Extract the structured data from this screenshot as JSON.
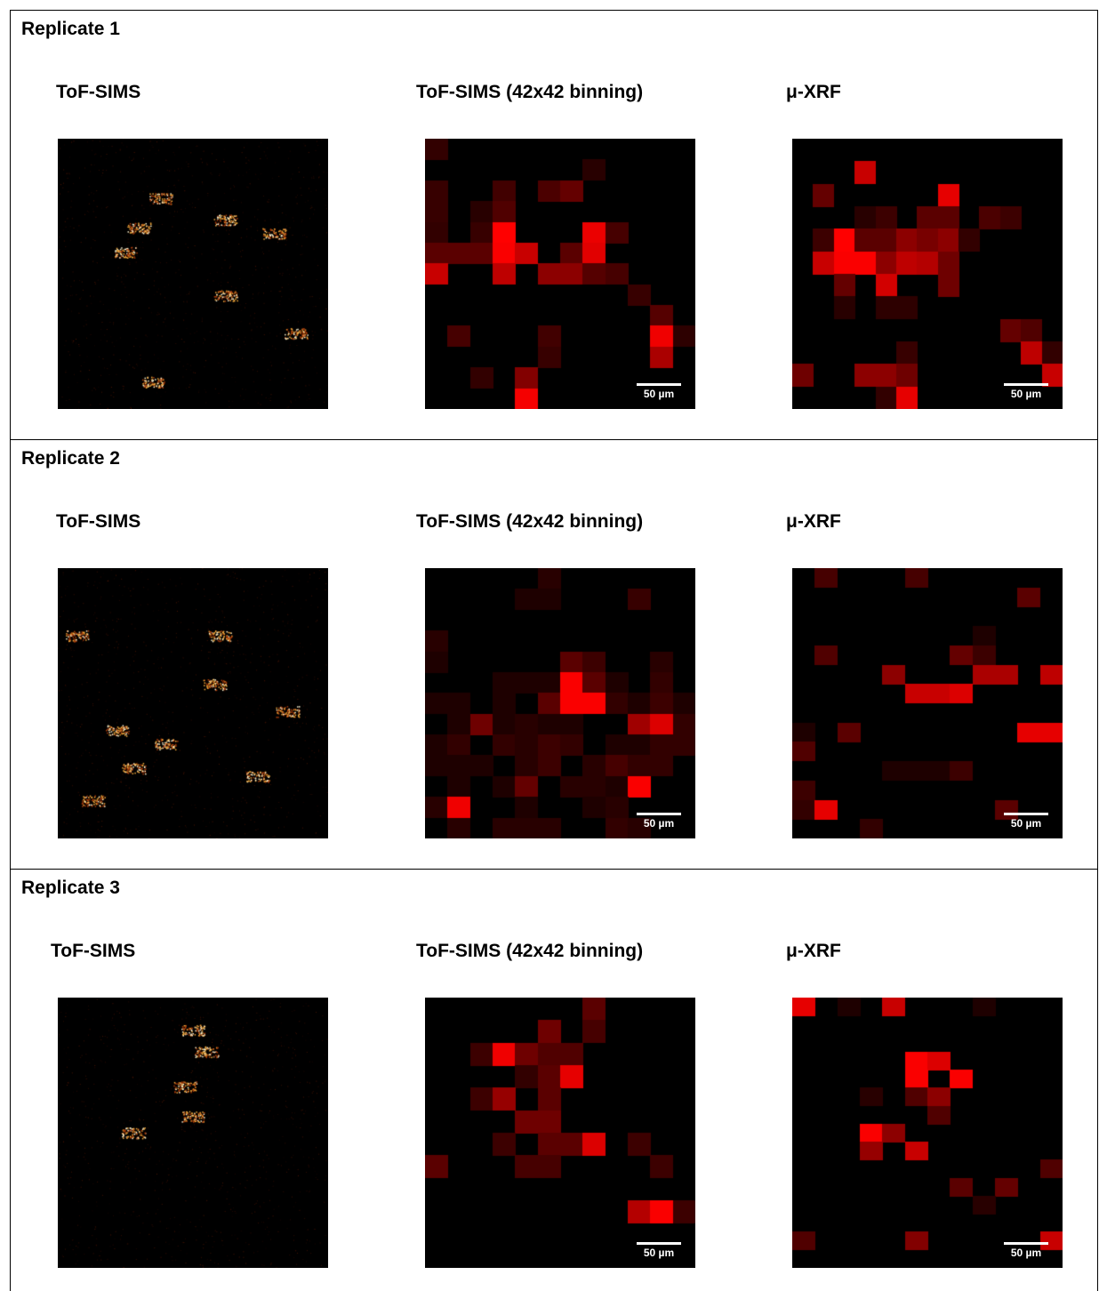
{
  "replicates": [
    {
      "title": "Replicate 1",
      "col_titles": [
        "ToF-SIMS",
        "ToF-SIMS (42x42 binning)",
        "μ-XRF"
      ],
      "scale_label": "50 µm",
      "tofsims_hotspots": [
        [
          0.3,
          0.33
        ],
        [
          0.62,
          0.3
        ],
        [
          0.25,
          0.42
        ],
        [
          0.88,
          0.72
        ],
        [
          0.38,
          0.22
        ],
        [
          0.35,
          0.9
        ],
        [
          0.62,
          0.58
        ],
        [
          0.8,
          0.35
        ]
      ],
      "binned_grid": [
        [
          50,
          0,
          0,
          0,
          0,
          0,
          0,
          0,
          0,
          0,
          0,
          0
        ],
        [
          0,
          0,
          0,
          0,
          0,
          0,
          0,
          40,
          0,
          0,
          0,
          0
        ],
        [
          55,
          0,
          0,
          65,
          0,
          75,
          100,
          0,
          0,
          0,
          0,
          0
        ],
        [
          55,
          0,
          40,
          80,
          0,
          0,
          0,
          0,
          0,
          0,
          0,
          0
        ],
        [
          50,
          0,
          55,
          255,
          0,
          0,
          0,
          235,
          70,
          0,
          0,
          0
        ],
        [
          90,
          90,
          90,
          250,
          200,
          0,
          90,
          225,
          0,
          0,
          0,
          0
        ],
        [
          200,
          0,
          0,
          190,
          0,
          140,
          140,
          85,
          70,
          0,
          0,
          0
        ],
        [
          0,
          0,
          0,
          0,
          0,
          0,
          0,
          0,
          0,
          55,
          0,
          0
        ],
        [
          0,
          0,
          0,
          0,
          0,
          0,
          0,
          0,
          0,
          0,
          85,
          0
        ],
        [
          0,
          70,
          0,
          0,
          0,
          65,
          0,
          0,
          0,
          0,
          240,
          45
        ],
        [
          0,
          0,
          0,
          0,
          0,
          55,
          0,
          0,
          0,
          0,
          170,
          0
        ],
        [
          0,
          0,
          50,
          0,
          130,
          0,
          0,
          0,
          0,
          0,
          0,
          0
        ],
        [
          0,
          0,
          0,
          0,
          245,
          0,
          0,
          0,
          0,
          0,
          0,
          0
        ]
      ],
      "xrf_grid": [
        [
          0,
          0,
          0,
          0,
          0,
          0,
          0,
          0,
          0,
          0,
          0,
          0
        ],
        [
          0,
          0,
          0,
          200,
          0,
          0,
          0,
          0,
          0,
          0,
          0,
          0
        ],
        [
          0,
          100,
          0,
          0,
          0,
          0,
          0,
          230,
          0,
          0,
          0,
          0
        ],
        [
          0,
          0,
          0,
          40,
          60,
          0,
          90,
          90,
          0,
          75,
          60,
          0
        ],
        [
          0,
          60,
          255,
          90,
          90,
          140,
          120,
          140,
          50,
          0,
          0,
          0
        ],
        [
          0,
          200,
          250,
          250,
          140,
          190,
          180,
          110,
          0,
          0,
          0,
          0
        ],
        [
          0,
          0,
          100,
          0,
          210,
          0,
          0,
          110,
          0,
          0,
          0,
          0
        ],
        [
          0,
          0,
          40,
          0,
          45,
          45,
          0,
          0,
          0,
          0,
          0,
          0
        ],
        [
          0,
          0,
          0,
          0,
          0,
          0,
          0,
          0,
          0,
          0,
          100,
          80
        ],
        [
          0,
          0,
          0,
          0,
          0,
          55,
          0,
          0,
          0,
          0,
          0,
          190,
          50
        ],
        [
          110,
          0,
          0,
          140,
          140,
          110,
          0,
          0,
          0,
          0,
          0,
          0,
          200
        ],
        [
          0,
          0,
          0,
          0,
          50,
          230,
          0,
          0,
          0,
          0,
          0,
          0
        ]
      ]
    },
    {
      "title": "Replicate 2",
      "col_titles": [
        "ToF-SIMS",
        "ToF-SIMS (42x42 binning)",
        "μ-XRF"
      ],
      "scale_label": "50 µm",
      "tofsims_hotspots": [
        [
          0.58,
          0.43
        ],
        [
          0.85,
          0.53
        ],
        [
          0.74,
          0.77
        ],
        [
          0.13,
          0.86
        ],
        [
          0.28,
          0.74
        ],
        [
          0.6,
          0.25
        ],
        [
          0.4,
          0.65
        ],
        [
          0.07,
          0.25
        ],
        [
          0.22,
          0.6
        ]
      ],
      "binned_grid": [
        [
          0,
          0,
          0,
          0,
          0,
          40,
          0,
          0,
          0,
          0,
          0,
          0
        ],
        [
          0,
          0,
          0,
          0,
          30,
          30,
          0,
          0,
          0,
          55,
          0,
          0
        ],
        [
          0,
          0,
          0,
          0,
          0,
          0,
          0,
          0,
          0,
          0,
          0,
          0
        ],
        [
          40,
          0,
          0,
          0,
          0,
          0,
          0,
          0,
          0,
          0,
          0,
          0
        ],
        [
          30,
          0,
          0,
          0,
          0,
          0,
          90,
          60,
          0,
          0,
          40,
          0
        ],
        [
          0,
          0,
          0,
          30,
          30,
          30,
          250,
          90,
          30,
          0,
          50,
          0
        ],
        [
          30,
          30,
          0,
          30,
          0,
          90,
          250,
          250,
          50,
          30,
          60,
          30
        ],
        [
          0,
          30,
          110,
          30,
          40,
          30,
          30,
          0,
          0,
          160,
          220,
          50
        ],
        [
          30,
          50,
          0,
          50,
          40,
          60,
          50,
          0,
          30,
          30,
          50,
          50
        ],
        [
          30,
          30,
          30,
          0,
          40,
          60,
          0,
          40,
          70,
          50,
          50,
          0
        ],
        [
          0,
          30,
          0,
          30,
          100,
          0,
          40,
          40,
          30,
          250,
          0,
          0
        ],
        [
          40,
          240,
          0,
          0,
          30,
          0,
          0,
          30,
          40,
          0,
          0,
          0
        ],
        [
          0,
          40,
          0,
          40,
          40,
          40,
          0,
          0,
          50,
          40,
          0,
          0
        ]
      ],
      "xrf_grid": [
        [
          0,
          70,
          0,
          0,
          0,
          70,
          0,
          0,
          0,
          0,
          0,
          0
        ],
        [
          0,
          0,
          0,
          0,
          0,
          0,
          0,
          0,
          0,
          0,
          90,
          0
        ],
        [
          0,
          0,
          0,
          0,
          0,
          0,
          0,
          0,
          0,
          0,
          0,
          0
        ],
        [
          0,
          0,
          0,
          0,
          0,
          0,
          0,
          0,
          30,
          0,
          0,
          0
        ],
        [
          0,
          80,
          0,
          0,
          0,
          0,
          0,
          100,
          60,
          0,
          0,
          0
        ],
        [
          0,
          0,
          0,
          0,
          140,
          0,
          0,
          0,
          170,
          170,
          0,
          190
        ],
        [
          0,
          0,
          0,
          0,
          0,
          200,
          200,
          220,
          0,
          0,
          0,
          0
        ],
        [
          0,
          0,
          0,
          0,
          0,
          0,
          0,
          0,
          0,
          0,
          0,
          0
        ],
        [
          30,
          0,
          90,
          0,
          0,
          0,
          0,
          0,
          0,
          0,
          230,
          230
        ],
        [
          80,
          0,
          0,
          0,
          0,
          0,
          0,
          0,
          0,
          0,
          0,
          0
        ],
        [
          0,
          0,
          0,
          0,
          30,
          30,
          30,
          60,
          0,
          0,
          0,
          0
        ],
        [
          60,
          0,
          0,
          0,
          0,
          0,
          0,
          0,
          0,
          0,
          0,
          0
        ],
        [
          50,
          230,
          0,
          0,
          0,
          0,
          0,
          0,
          0,
          90,
          0,
          0
        ],
        [
          0,
          0,
          0,
          50,
          0,
          0,
          0,
          0,
          0,
          0,
          0,
          0
        ]
      ]
    },
    {
      "title": "Replicate 3",
      "col_titles": [
        "ToF-SIMS",
        "ToF-SIMS (42x42 binning)",
        "μ-XRF"
      ],
      "scale_label": "50 µm",
      "tofsims_hotspots": [
        [
          0.47,
          0.33
        ],
        [
          0.5,
          0.44
        ],
        [
          0.55,
          0.2
        ],
        [
          0.28,
          0.5
        ],
        [
          0.5,
          0.12
        ]
      ],
      "binned_grid": [
        [
          0,
          0,
          0,
          0,
          0,
          0,
          0,
          90,
          0,
          0,
          0,
          0
        ],
        [
          0,
          0,
          0,
          0,
          0,
          110,
          0,
          70,
          0,
          0,
          0,
          0
        ],
        [
          0,
          0,
          60,
          240,
          110,
          80,
          80,
          0,
          0,
          0,
          0,
          0
        ],
        [
          0,
          0,
          0,
          0,
          50,
          90,
          230,
          0,
          0,
          0,
          0,
          0
        ],
        [
          0,
          0,
          60,
          150,
          0,
          90,
          0,
          0,
          0,
          0,
          0,
          0
        ],
        [
          0,
          0,
          0,
          0,
          110,
          110,
          0,
          0,
          0,
          0,
          0,
          0
        ],
        [
          0,
          0,
          0,
          60,
          0,
          90,
          90,
          220,
          0,
          60,
          0,
          0
        ],
        [
          90,
          0,
          0,
          0,
          70,
          70,
          0,
          0,
          0,
          0,
          60,
          0
        ],
        [
          0,
          0,
          0,
          0,
          0,
          0,
          0,
          0,
          0,
          0,
          0,
          0
        ],
        [
          0,
          0,
          0,
          0,
          0,
          0,
          0,
          0,
          0,
          180,
          250,
          60
        ],
        [
          0,
          0,
          0,
          0,
          0,
          0,
          0,
          0,
          0,
          0,
          0,
          0
        ],
        [
          0,
          0,
          0,
          0,
          0,
          0,
          0,
          0,
          0,
          0,
          0,
          0
        ]
      ],
      "xrf_grid": [
        [
          230,
          0,
          30,
          0,
          200,
          0,
          0,
          0,
          30,
          0,
          0,
          0
        ],
        [
          0,
          0,
          0,
          0,
          0,
          0,
          0,
          0,
          0,
          0,
          0,
          0
        ],
        [
          0,
          0,
          0,
          0,
          0,
          0,
          0,
          0,
          0,
          0,
          0,
          0
        ],
        [
          0,
          0,
          0,
          0,
          0,
          250,
          220,
          0,
          0,
          0,
          0,
          0
        ],
        [
          0,
          0,
          0,
          0,
          0,
          250,
          0,
          250,
          0,
          0,
          0,
          0
        ],
        [
          0,
          0,
          0,
          40,
          0,
          80,
          140,
          0,
          0,
          0,
          0,
          0
        ],
        [
          0,
          0,
          0,
          0,
          0,
          0,
          80,
          0,
          0,
          0,
          0,
          0
        ],
        [
          0,
          0,
          0,
          250,
          140,
          0,
          0,
          0,
          0,
          0,
          0,
          0
        ],
        [
          0,
          0,
          0,
          150,
          0,
          200,
          0,
          0,
          0,
          0,
          0,
          0
        ],
        [
          0,
          0,
          0,
          0,
          0,
          0,
          0,
          0,
          0,
          0,
          0,
          80
        ],
        [
          0,
          0,
          0,
          0,
          0,
          0,
          0,
          90,
          0,
          100,
          0,
          0
        ],
        [
          0,
          0,
          0,
          0,
          0,
          0,
          0,
          0,
          40,
          0,
          0,
          0
        ],
        [
          0,
          0,
          0,
          0,
          0,
          0,
          0,
          0,
          0,
          0,
          0,
          0
        ],
        [
          80,
          0,
          0,
          0,
          0,
          130,
          0,
          0,
          0,
          0,
          0,
          200
        ],
        [
          0,
          0,
          0,
          0,
          0,
          0,
          0,
          0,
          0,
          0,
          0,
          0
        ]
      ]
    }
  ]
}
